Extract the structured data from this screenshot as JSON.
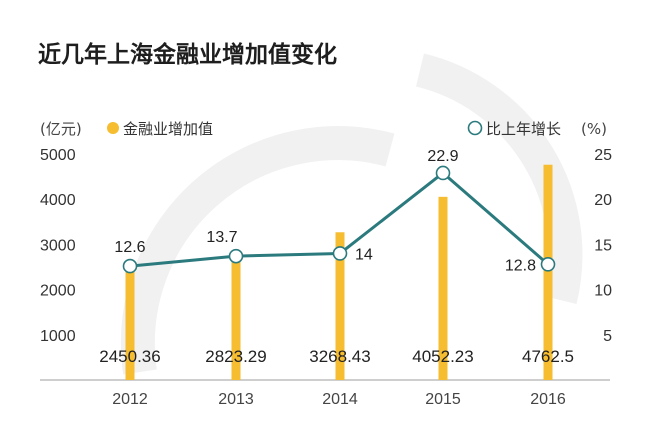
{
  "chart_data": {
    "type": "bar",
    "title": "近几年上海金融业增加值变化",
    "categories": [
      "2012",
      "2013",
      "2014",
      "2015",
      "2016"
    ],
    "series": [
      {
        "name": "金融业增加值",
        "type": "bar",
        "axis": "left",
        "unit": "(亿元)",
        "values": [
          2450.36,
          2823.29,
          3268.43,
          4052.23,
          4762.5
        ],
        "value_labels": [
          "2450.36",
          "2823.29",
          "3268.43",
          "4052.23",
          "4762.5"
        ]
      },
      {
        "name": "比上年增长",
        "type": "line",
        "axis": "right",
        "unit": "(%)",
        "values": [
          12.6,
          13.7,
          14,
          22.9,
          12.8
        ],
        "value_labels": [
          "12.6",
          "13.7",
          "14",
          "22.9",
          "12.8"
        ]
      }
    ],
    "y_left": {
      "label": "(亿元)",
      "ticks": [
        "1000",
        "2000",
        "3000",
        "4000",
        "5000"
      ],
      "ylim": [
        0,
        5000
      ]
    },
    "y_right": {
      "label": "(%)",
      "ticks": [
        "5",
        "10",
        "15",
        "20",
        "25"
      ],
      "ylim": [
        0,
        25
      ]
    },
    "grid": false,
    "legend_placement": "top",
    "colors": {
      "bar": "#f5bd2f",
      "line": "#2b7a7e",
      "marker_edge": "#2b7a7e",
      "baseline": "#b0b0b0"
    }
  }
}
